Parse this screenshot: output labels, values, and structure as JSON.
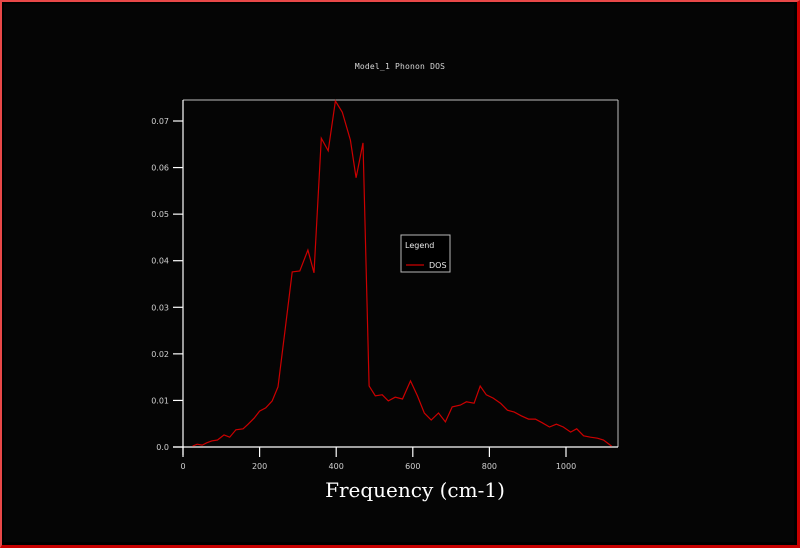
{
  "window": {
    "border_color": "#e84848",
    "background": "#000000"
  },
  "chart_data": {
    "type": "line",
    "title": "Model_1 Phonon DOS",
    "xlabel": "Frequency (cm-1)",
    "ylabel": "",
    "xlim": [
      0,
      1140
    ],
    "ylim": [
      0,
      0.0745
    ],
    "grid": false,
    "legend_position": "center-right",
    "legend_title": "Legend",
    "x_ticks": [
      0,
      200,
      400,
      600,
      800,
      1000
    ],
    "x_tick_labels": [
      "0",
      "200",
      "400",
      "600",
      "800",
      "1000"
    ],
    "y_ticks": [
      0.0,
      0.01,
      0.02,
      0.03,
      0.04,
      0.05,
      0.06,
      0.07
    ],
    "y_tick_labels": [
      "0.0",
      "0.01",
      "0.02",
      "0.03",
      "0.04",
      "0.05",
      "0.06",
      "0.07"
    ],
    "series": [
      {
        "name": "DOS",
        "color": "#cc0000",
        "x": [
          25,
          37,
          50,
          62,
          75,
          90,
          107,
          122,
          138,
          157,
          170,
          186,
          200,
          216,
          233,
          248,
          267,
          285,
          305,
          326,
          342,
          361,
          379,
          398,
          416,
          437,
          452,
          470,
          486,
          502,
          520,
          536,
          554,
          573,
          594,
          612,
          630,
          648,
          667,
          685,
          703,
          724,
          740,
          760,
          776,
          792,
          810,
          829,
          847,
          865,
          883,
          902,
          920,
          938,
          957,
          975,
          993,
          1012,
          1028,
          1046,
          1064,
          1082,
          1098,
          1119
        ],
        "values": [
          0.0002,
          0.0006,
          0.0004,
          0.0009,
          0.0013,
          0.0015,
          0.0026,
          0.0021,
          0.0037,
          0.0039,
          0.0049,
          0.0062,
          0.0077,
          0.0084,
          0.0099,
          0.0129,
          0.0255,
          0.0376,
          0.0378,
          0.0423,
          0.0374,
          0.0663,
          0.0636,
          0.0743,
          0.0719,
          0.0659,
          0.0578,
          0.0653,
          0.0131,
          0.011,
          0.0112,
          0.0099,
          0.0107,
          0.0103,
          0.0142,
          0.011,
          0.0073,
          0.0058,
          0.0073,
          0.0054,
          0.0086,
          0.009,
          0.0097,
          0.0094,
          0.0131,
          0.0112,
          0.0105,
          0.0094,
          0.0079,
          0.0075,
          0.0067,
          0.006,
          0.006,
          0.0052,
          0.0043,
          0.0049,
          0.0043,
          0.0032,
          0.0039,
          0.0024,
          0.0021,
          0.0019,
          0.0015,
          0.0002
        ]
      }
    ]
  }
}
